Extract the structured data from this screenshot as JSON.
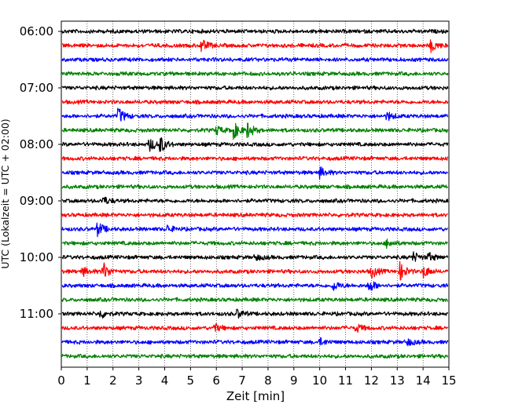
{
  "chart_data": {
    "type": "line",
    "title": "",
    "xlabel": "Zeit  [min]",
    "ylabel": "UTC (Lokalzeit = UTC + 02:00)",
    "xlim": [
      0,
      15
    ],
    "x_ticks": [
      "0",
      "1",
      "2",
      "3",
      "4",
      "5",
      "6",
      "7",
      "8",
      "9",
      "10",
      "11",
      "12",
      "13",
      "14",
      "15"
    ],
    "y_tick_labels": [
      "06:00",
      "07:00",
      "08:00",
      "09:00",
      "10:00",
      "11:00"
    ],
    "grid": "vertical-dotted",
    "trace_colors": [
      "#000000",
      "#ff0000",
      "#0000ff",
      "#008000"
    ],
    "trace_start_times": [
      "06:00",
      "06:15",
      "06:30",
      "06:45",
      "07:00",
      "07:15",
      "07:30",
      "07:45",
      "08:00",
      "08:15",
      "08:30",
      "08:45",
      "09:00",
      "09:15",
      "09:30",
      "09:45",
      "10:00",
      "10:15",
      "10:30",
      "10:45",
      "11:00",
      "11:15",
      "11:30",
      "11:45"
    ],
    "events": [
      {
        "trace": 1,
        "minute": 5.4,
        "amp": 0.8
      },
      {
        "trace": 1,
        "minute": 14.3,
        "amp": 0.7
      },
      {
        "trace": 6,
        "minute": 2.2,
        "amp": 1.0
      },
      {
        "trace": 6,
        "minute": 12.6,
        "amp": 0.5
      },
      {
        "trace": 7,
        "minute": 6.0,
        "amp": 0.5
      },
      {
        "trace": 7,
        "minute": 6.6,
        "amp": 1.3
      },
      {
        "trace": 7,
        "minute": 7.2,
        "amp": 0.9
      },
      {
        "trace": 8,
        "minute": 3.4,
        "amp": 0.8
      },
      {
        "trace": 8,
        "minute": 3.8,
        "amp": 1.0
      },
      {
        "trace": 10,
        "minute": 10.0,
        "amp": 0.6
      },
      {
        "trace": 12,
        "minute": 1.6,
        "amp": 0.5
      },
      {
        "trace": 14,
        "minute": 1.4,
        "amp": 0.8
      },
      {
        "trace": 14,
        "minute": 4.1,
        "amp": 0.4
      },
      {
        "trace": 15,
        "minute": 12.6,
        "amp": 0.5
      },
      {
        "trace": 16,
        "minute": 7.5,
        "amp": 0.4
      },
      {
        "trace": 16,
        "minute": 13.6,
        "amp": 0.6
      },
      {
        "trace": 16,
        "minute": 14.2,
        "amp": 0.5
      },
      {
        "trace": 17,
        "minute": 0.8,
        "amp": 0.5
      },
      {
        "trace": 17,
        "minute": 1.6,
        "amp": 1.1
      },
      {
        "trace": 17,
        "minute": 12.0,
        "amp": 0.7
      },
      {
        "trace": 17,
        "minute": 13.1,
        "amp": 1.0
      },
      {
        "trace": 17,
        "minute": 14.0,
        "amp": 0.7
      },
      {
        "trace": 18,
        "minute": 10.5,
        "amp": 0.6
      },
      {
        "trace": 18,
        "minute": 11.9,
        "amp": 0.8
      },
      {
        "trace": 20,
        "minute": 1.5,
        "amp": 0.5
      },
      {
        "trace": 20,
        "minute": 6.8,
        "amp": 0.5
      },
      {
        "trace": 21,
        "minute": 5.9,
        "amp": 0.5
      },
      {
        "trace": 21,
        "minute": 11.4,
        "amp": 0.5
      },
      {
        "trace": 22,
        "minute": 10.0,
        "amp": 0.4
      },
      {
        "trace": 22,
        "minute": 13.4,
        "amp": 0.4
      }
    ]
  }
}
